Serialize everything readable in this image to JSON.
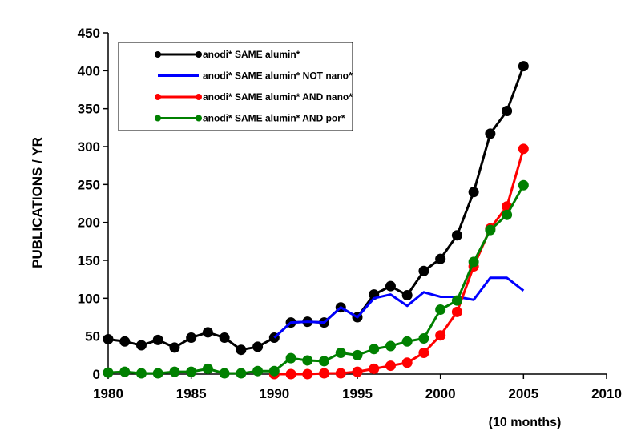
{
  "chart_data": {
    "type": "line",
    "title": "",
    "xlabel": "",
    "ylabel": "PUBLICATIONS / YR",
    "xlim": [
      1980,
      2010
    ],
    "ylim": [
      0,
      450
    ],
    "x_ticks": [
      1980,
      1985,
      1990,
      1995,
      2000,
      2005,
      2010
    ],
    "y_ticks": [
      0,
      50,
      100,
      150,
      200,
      250,
      300,
      350,
      400,
      450
    ],
    "grid": false,
    "legend_position": "top-left",
    "annotation": "(10 months)",
    "series": [
      {
        "name": "anodi* SAME alumin*",
        "color": "#000000",
        "markers": true,
        "x": [
          1980,
          1981,
          1982,
          1983,
          1984,
          1985,
          1986,
          1987,
          1988,
          1989,
          1990,
          1991,
          1992,
          1993,
          1994,
          1995,
          1996,
          1997,
          1998,
          1999,
          2000,
          2001,
          2002,
          2003,
          2004,
          2005
        ],
        "y": [
          46,
          43,
          38,
          45,
          35,
          48,
          55,
          48,
          32,
          36,
          48,
          68,
          69,
          68,
          88,
          75,
          105,
          116,
          104,
          136,
          152,
          183,
          240,
          317,
          347,
          406
        ]
      },
      {
        "name": "anodi* SAME alumin* NOT nano*",
        "color": "#0000ff",
        "markers": false,
        "x": [
          1990,
          1991,
          1992,
          1993,
          1994,
          1995,
          1996,
          1997,
          1998,
          1999,
          2000,
          2001,
          2002,
          2003,
          2004,
          2005
        ],
        "y": [
          48,
          68,
          69,
          68,
          88,
          75,
          100,
          105,
          90,
          108,
          102,
          102,
          98,
          127,
          127,
          110
        ]
      },
      {
        "name": "anodi* SAME alumin* AND nano*",
        "color": "#ff0000",
        "markers": true,
        "x": [
          1990,
          1991,
          1992,
          1993,
          1994,
          1995,
          1996,
          1997,
          1998,
          1999,
          2000,
          2001,
          2002,
          2003,
          2004,
          2005
        ],
        "y": [
          0,
          0,
          0,
          1,
          1,
          3,
          7,
          11,
          15,
          28,
          51,
          82,
          142,
          192,
          221,
          297
        ]
      },
      {
        "name": "anodi* SAME alumin* AND por*",
        "color": "#008000",
        "markers": true,
        "x": [
          1980,
          1981,
          1982,
          1983,
          1984,
          1985,
          1986,
          1987,
          1988,
          1989,
          1990,
          1991,
          1992,
          1993,
          1994,
          1995,
          1996,
          1997,
          1998,
          1999,
          2000,
          2001,
          2002,
          2003,
          2004,
          2005
        ],
        "y": [
          2,
          3,
          1,
          1,
          3,
          3,
          7,
          1,
          1,
          4,
          4,
          21,
          18,
          17,
          28,
          25,
          33,
          37,
          43,
          47,
          85,
          97,
          148,
          190,
          210,
          249
        ]
      }
    ]
  }
}
